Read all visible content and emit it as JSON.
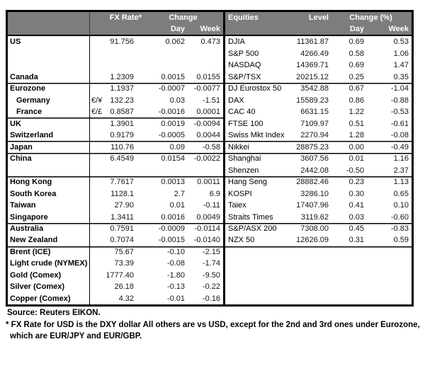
{
  "colors": {
    "header_bg": "#7d7d7d",
    "header_text": "#ffffff",
    "border": "#000000"
  },
  "header": {
    "fx": {
      "rate": "FX Rate*",
      "change": "Change",
      "day": "Day",
      "week": "Week"
    },
    "eq": {
      "title": "Equities",
      "level": "Level",
      "change": "Change (%)",
      "day": "Day",
      "week": "Week"
    }
  },
  "fx_rows": [
    {
      "label": "US",
      "sym": "",
      "rate": "91.756",
      "day": "0.062",
      "week": "0.473"
    },
    {
      "label": "",
      "sym": "",
      "rate": "",
      "day": "",
      "week": ""
    },
    {
      "label": "",
      "sym": "",
      "rate": "",
      "day": "",
      "week": ""
    },
    {
      "label": "Canada",
      "sym": "",
      "rate": "1.2309",
      "day": "0.0015",
      "week": "0.0155"
    },
    {
      "label": "Eurozone",
      "sym": "",
      "rate": "1.1937",
      "day": "-0.0007",
      "week": "-0.0077",
      "sep": true
    },
    {
      "label": "Germany",
      "sym": "€/¥",
      "rate": "132.23",
      "day": "0.03",
      "week": "-1.51",
      "indent": true
    },
    {
      "label": "France",
      "sym": "€/£",
      "rate": "0.8587",
      "day": "-0.0016",
      "week": "0.0001",
      "indent": true
    },
    {
      "label": "UK",
      "sym": "",
      "rate": "1.3901",
      "day": "0.0019",
      "week": "-0.0094",
      "sep": true
    },
    {
      "label": "Switzerland",
      "sym": "",
      "rate": "0.9179",
      "day": "-0.0005",
      "week": "0.0044"
    },
    {
      "label": "Japan",
      "sym": "",
      "rate": "110.76",
      "day": "0.09",
      "week": "-0.58",
      "sep": true
    },
    {
      "label": "China",
      "sym": "",
      "rate": "6.4549",
      "day": "0.0154",
      "week": "-0.0022",
      "sep": true
    },
    {
      "label": "",
      "sym": "",
      "rate": "",
      "day": "",
      "week": ""
    },
    {
      "label": "Hong Kong",
      "sym": "",
      "rate": "7.7617",
      "day": "0.0013",
      "week": "0.0011",
      "sep": true
    },
    {
      "label": "South Korea",
      "sym": "",
      "rate": "1128.1",
      "day": "2.7",
      "week": "6.9"
    },
    {
      "label": "Taiwan",
      "sym": "",
      "rate": "27.90",
      "day": "0.01",
      "week": "-0.11"
    },
    {
      "label": "Singapore",
      "sym": "",
      "rate": "1.3411",
      "day": "0.0016",
      "week": "0.0049"
    },
    {
      "label": "Australia",
      "sym": "",
      "rate": "0.7591",
      "day": "-0.0009",
      "week": "-0.0114",
      "sep": true
    },
    {
      "label": "New Zealand",
      "sym": "",
      "rate": "0.7074",
      "day": "-0.0015",
      "week": "-0.0140"
    },
    {
      "label": "Brent (ICE)",
      "sym": "",
      "rate": "75.67",
      "day": "-0.10",
      "week": "-2.15",
      "sep": true
    },
    {
      "label": "Light crude (NYMEX)",
      "sym": "",
      "rate": "73.39",
      "day": "-0.08",
      "week": "-1.74"
    },
    {
      "label": "Gold (Comex)",
      "sym": "",
      "rate": "1777.40",
      "day": "-1.80",
      "week": "-9.50"
    },
    {
      "label": "Silver (Comex)",
      "sym": "",
      "rate": "26.18",
      "day": "-0.13",
      "week": "-0.22"
    },
    {
      "label": "Copper (Comex)",
      "sym": "",
      "rate": "4.32",
      "day": "-0.01",
      "week": "-0.16"
    }
  ],
  "eq_rows": [
    {
      "label": "DJIA",
      "level": "11361.87",
      "day": "0.69",
      "week": "0.53"
    },
    {
      "label": "S&P 500",
      "level": "4266.49",
      "day": "0.58",
      "week": "1.06"
    },
    {
      "label": "NASDAQ",
      "level": "14369.71",
      "day": "0.69",
      "week": "1.47"
    },
    {
      "label": "S&P/TSX",
      "level": "20215.12",
      "day": "0.25",
      "week": "0.35"
    },
    {
      "label": "DJ Eurostox 50",
      "level": "3542.88",
      "day": "0.67",
      "week": "-1.04",
      "sep": true
    },
    {
      "label": "DAX",
      "level": "15589.23",
      "day": "0.86",
      "week": "-0.88"
    },
    {
      "label": "CAC 40",
      "level": "6631.15",
      "day": "1.22",
      "week": "-0.53"
    },
    {
      "label": "FTSE 100",
      "level": "7109.97",
      "day": "0.51",
      "week": "-0.61"
    },
    {
      "label": "Swiss Mkt Index",
      "level": "2270.94",
      "day": "1.28",
      "week": "-0.08"
    },
    {
      "label": "Nikkei",
      "level": "28875.23",
      "day": "0.00",
      "week": "-0.49",
      "sep": true
    },
    {
      "label": "Shanghai",
      "level": "3607.56",
      "day": "0.01",
      "week": "1.16",
      "sep": true
    },
    {
      "label": "Shenzen",
      "level": "2442.08",
      "day": "-0.50",
      "week": "2.37"
    },
    {
      "label": "Hang Seng",
      "level": "28882.46",
      "day": "0.23",
      "week": "1.13",
      "sep": true
    },
    {
      "label": "KOSPI",
      "level": "3286.10",
      "day": "0.30",
      "week": "0.65"
    },
    {
      "label": "Taiex",
      "level": "17407.96",
      "day": "0.41",
      "week": "0.10"
    },
    {
      "label": "Straits Times",
      "level": "3119.62",
      "day": "0.03",
      "week": "-0.60"
    },
    {
      "label": "S&P/ASX 200",
      "level": "7308.00",
      "day": "0.45",
      "week": "-0.83",
      "sep": true
    },
    {
      "label": "NZX 50",
      "level": "12626.09",
      "day": "0.31",
      "week": "0.59"
    },
    {
      "label": "",
      "level": "",
      "day": "",
      "week": "",
      "sep": true
    },
    {
      "label": "",
      "level": "",
      "day": "",
      "week": ""
    },
    {
      "label": "",
      "level": "",
      "day": "",
      "week": ""
    },
    {
      "label": "",
      "level": "",
      "day": "",
      "week": ""
    },
    {
      "label": "",
      "level": "",
      "day": "",
      "week": ""
    }
  ],
  "footer": {
    "source": "Source:  Reuters EIKON.",
    "note_line1": "* FX Rate for USD is the DXY dollar  All others are vs USD, except for the 2nd and 3rd ones under Eurozone,",
    "note_line2": "which are EUR/JPY and EUR/GBP."
  }
}
